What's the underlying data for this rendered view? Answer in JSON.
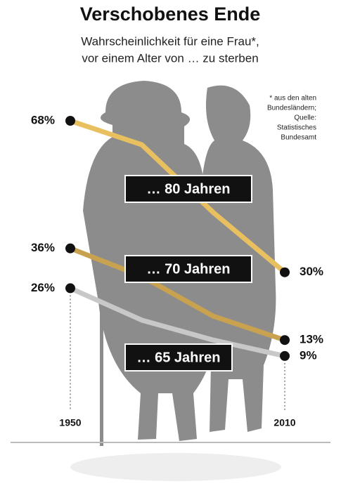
{
  "chart_data": {
    "type": "line",
    "title": "Verschobenes Ende",
    "subtitle": [
      "Wahrscheinlichkeit für eine Frau*,",
      "vor einem Alter von … zu sterben"
    ],
    "note": [
      "* aus den alten",
      "Bundesländern;",
      "Quelle:",
      "Statistisches",
      "Bundesamt"
    ],
    "x": [
      1950,
      1970,
      1990,
      2010
    ],
    "xlim": [
      1950,
      2010
    ],
    "xticks": [
      1950,
      2010
    ],
    "ylim": [
      0,
      68
    ],
    "series": [
      {
        "name": "… 80 Jahren",
        "color": "#e8c060",
        "values": [
          68,
          62,
          45,
          30
        ],
        "value_labels": [
          "68%",
          null,
          null,
          "30%"
        ]
      },
      {
        "name": "… 70 Jahren",
        "color": "#c9a24f",
        "values": [
          36,
          29,
          19,
          13
        ],
        "value_labels": [
          "36%",
          null,
          null,
          "13%"
        ]
      },
      {
        "name": "… 65 Jahren",
        "color": "#c8c8c8",
        "values": [
          26,
          18,
          13,
          9
        ],
        "value_labels": [
          "26%",
          null,
          null,
          "9%"
        ]
      }
    ]
  }
}
